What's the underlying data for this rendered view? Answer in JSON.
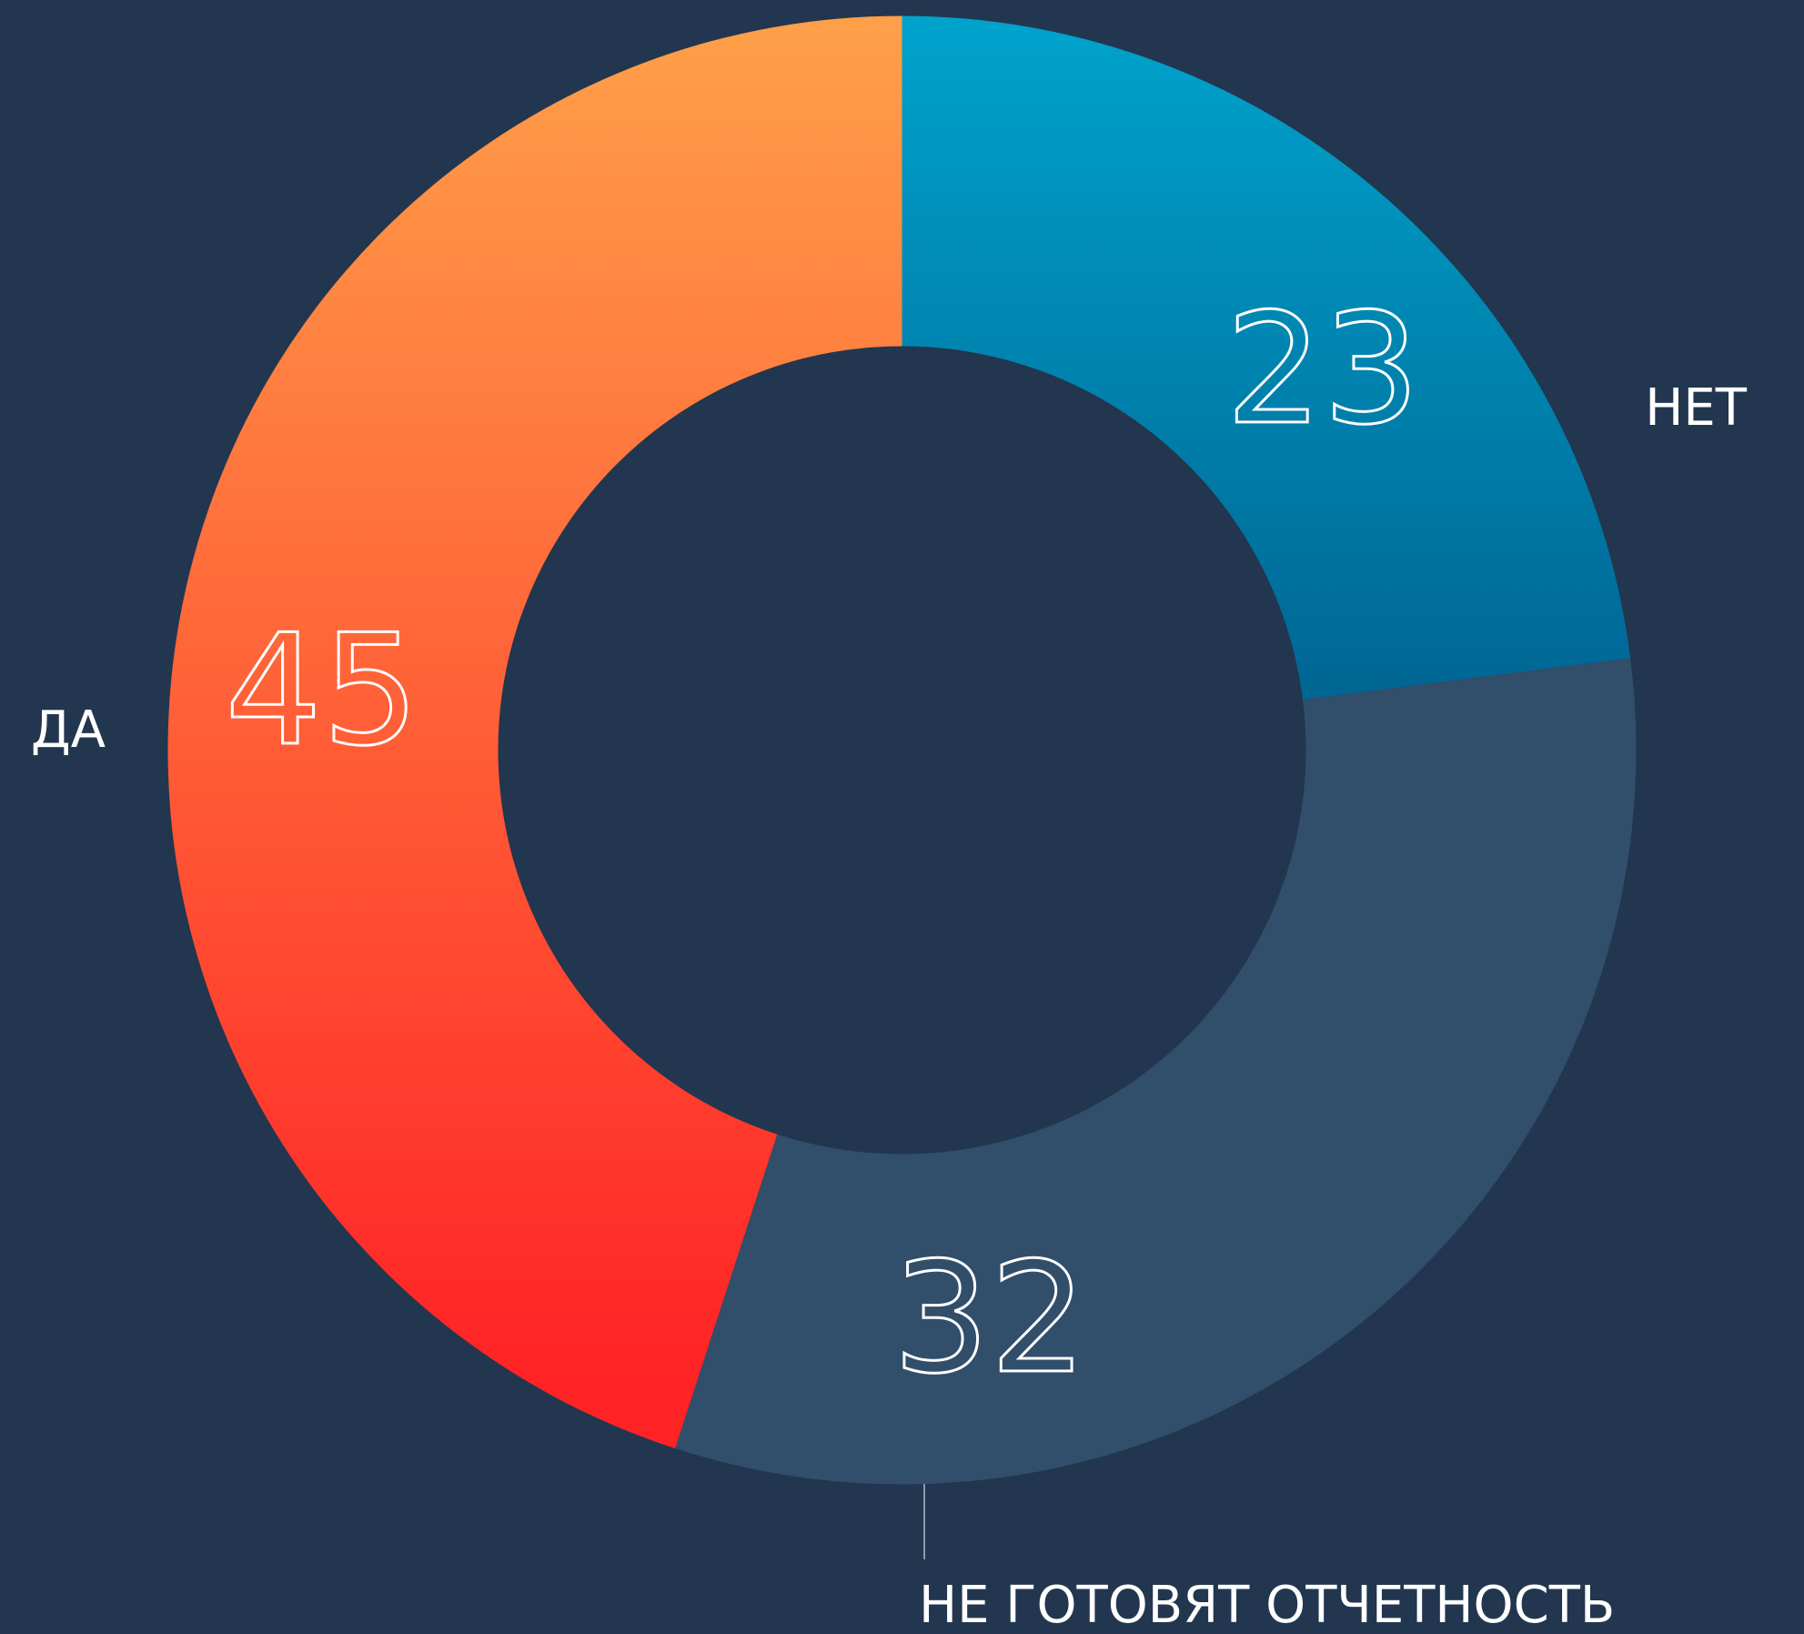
{
  "chart_data": {
    "type": "pie",
    "donut": true,
    "categories": [
      "НЕТ",
      "НЕ ГОТОВЯТ ОТЧЕТНОСТЬ",
      "ДА"
    ],
    "values": [
      23,
      32,
      45
    ],
    "colors": [
      [
        "#00a3cc",
        "#006694"
      ],
      [
        "#314e6b",
        "#314e6b"
      ],
      [
        "#ffa049",
        "#ff2326"
      ]
    ]
  }
}
